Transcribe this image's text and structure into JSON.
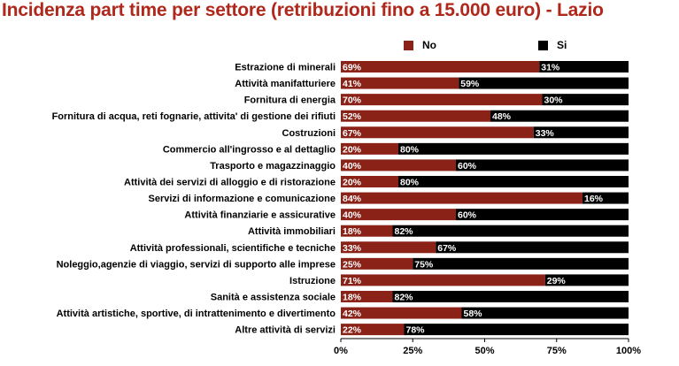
{
  "chart_data": {
    "type": "bar",
    "stacked": true,
    "orientation": "horizontal",
    "percent": true,
    "title": "Incidenza part time per settore (retribuzioni fino a 15.000 euro) - Lazio",
    "xlim": [
      0,
      100
    ],
    "x_ticks": [
      "0%",
      "25%",
      "50%",
      "75%",
      "100%"
    ],
    "legend_position": "top-right",
    "grid": false,
    "categories": [
      "Estrazione di minerali",
      "Attività manifatturiere",
      "Fornitura di energia",
      "Fornitura di acqua, reti fognarie, attivita' di gestione dei rifiuti",
      "Costruzioni",
      "Commercio all'ingrosso e al dettaglio",
      "Trasporto e magazzinaggio",
      "Attività dei servizi di alloggio e di ristorazione",
      "Servizi di informazione e comunicazione",
      "Attività finanziarie e assicurative",
      "Attività immobiliari",
      "Attività professionali, scientifiche e tecniche",
      "Noleggio,agenzie di viaggio, servizi di supporto alle imprese",
      "Istruzione",
      "Sanità e assistenza sociale",
      "Attività artistiche, sportive, di intrattenimento e divertimento",
      "Altre attività di servizi"
    ],
    "series": [
      {
        "name": "No",
        "color": "#8b2217",
        "label_color": "#ffffff",
        "values": [
          69,
          41,
          70,
          52,
          67,
          20,
          40,
          20,
          84,
          40,
          18,
          33,
          25,
          71,
          18,
          42,
          22
        ],
        "labels": [
          "69%",
          "41%",
          "70%",
          "52%",
          "67%",
          "20%",
          "40%",
          "20%",
          "84%",
          "40%",
          "18%",
          "33%",
          "25%",
          "71%",
          "18%",
          "42%",
          "22%"
        ]
      },
      {
        "name": "Si",
        "color": "#000000",
        "label_color": "#ffffff",
        "values": [
          31,
          59,
          30,
          48,
          33,
          80,
          60,
          80,
          16,
          60,
          82,
          67,
          75,
          29,
          82,
          58,
          78
        ],
        "labels": [
          "31%",
          "59%",
          "30%",
          "48%",
          "33%",
          "80%",
          "60%",
          "80%",
          "16%",
          "60%",
          "82%",
          "67%",
          "75%",
          "29%",
          "82%",
          "58%",
          "78%"
        ]
      }
    ]
  },
  "colors": {
    "title": "#b0271b",
    "axis": "#000000",
    "background": "#ffffff"
  }
}
